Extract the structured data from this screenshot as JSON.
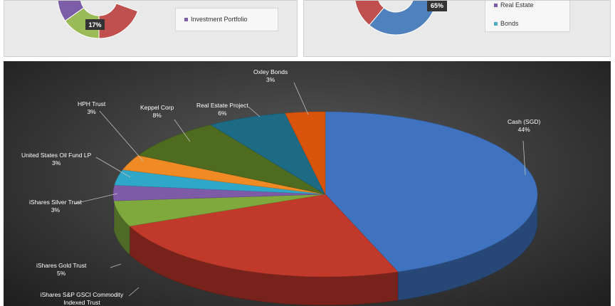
{
  "top_left_chart": {
    "percent_label": "17%",
    "legend": [
      {
        "label": "Investment Portfolio",
        "color": "#7b5ea7"
      }
    ],
    "segment_colors": [
      "#7b5ea7",
      "#9bbb59",
      "#c0504d"
    ]
  },
  "top_right_chart": {
    "percent_label": "65%",
    "legend": [
      {
        "label": "Real Estate",
        "color": "#7b5ea7"
      },
      {
        "label": "Bonds",
        "color": "#4bacc6"
      }
    ],
    "segment_colors": [
      "#4f81bd",
      "#c0504d"
    ]
  },
  "chart_data": {
    "type": "pie",
    "title": "",
    "slices": [
      {
        "label": "Cash (SGD)",
        "value": 44,
        "display": "44%",
        "color": "#3f73bf"
      },
      {
        "label": "iShares S&P GSCI Commodity Indexed Trust",
        "value": 24,
        "display": "",
        "color": "#c0392b"
      },
      {
        "label": "iShares Gold Trust",
        "value": 5,
        "display": "5%",
        "color": "#7fa93d"
      },
      {
        "label": "iShares Silver Trust",
        "value": 3,
        "display": "3%",
        "color": "#7d5ba6"
      },
      {
        "label": "United States Oil Fund LP",
        "value": 3,
        "display": "3%",
        "color": "#2fa7c9"
      },
      {
        "label": "HPH Trust",
        "value": 3,
        "display": "3%",
        "color": "#f08a24"
      },
      {
        "label": "Keppel Corp",
        "value": 8,
        "display": "8%",
        "color": "#4e6b1f"
      },
      {
        "label": "Real Estate Project",
        "value": 6,
        "display": "6%",
        "color": "#1d6a84"
      },
      {
        "label": "Oxley Bonds",
        "value": 3,
        "display": "3%",
        "color": "#d9540b"
      }
    ],
    "slice_order_note": ""
  }
}
